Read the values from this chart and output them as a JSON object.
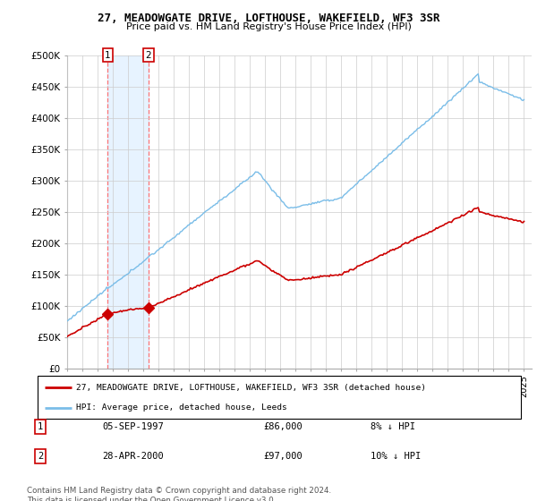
{
  "title": "27, MEADOWGATE DRIVE, LOFTHOUSE, WAKEFIELD, WF3 3SR",
  "subtitle": "Price paid vs. HM Land Registry's House Price Index (HPI)",
  "ylabel_vals": [
    0,
    50000,
    100000,
    150000,
    200000,
    250000,
    300000,
    350000,
    400000,
    450000,
    500000
  ],
  "ylabel_labels": [
    "£0",
    "£50K",
    "£100K",
    "£150K",
    "£200K",
    "£250K",
    "£300K",
    "£350K",
    "£400K",
    "£450K",
    "£500K"
  ],
  "ylim": [
    0,
    500000
  ],
  "hpi_color": "#7abde8",
  "price_color": "#cc0000",
  "shade_color": "#ddeeff",
  "background_color": "#ffffff",
  "grid_color": "#cccccc",
  "transaction1_date": "05-SEP-1997",
  "transaction1_price": 86000,
  "transaction1_year": 1997.67,
  "transaction1_pct": "8% ↓ HPI",
  "transaction2_date": "28-APR-2000",
  "transaction2_price": 97000,
  "transaction2_year": 2000.33,
  "transaction2_pct": "10% ↓ HPI",
  "legend_line1": "27, MEADOWGATE DRIVE, LOFTHOUSE, WAKEFIELD, WF3 3SR (detached house)",
  "legend_line2": "HPI: Average price, detached house, Leeds",
  "footer": "Contains HM Land Registry data © Crown copyright and database right 2024.\nThis data is licensed under the Open Government Licence v3.0."
}
